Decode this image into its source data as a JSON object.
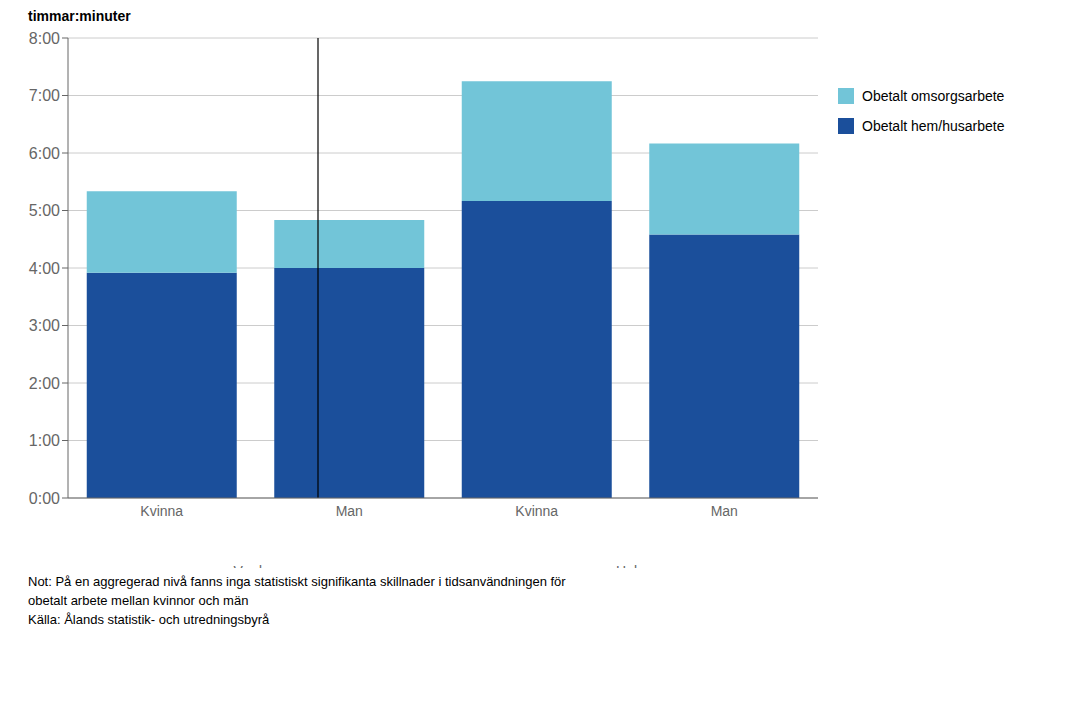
{
  "chart_data": {
    "type": "bar",
    "stacked": true,
    "ylabel": "timmar:minuter",
    "categories": [
      "Kvinna",
      "Man",
      "Kvinna",
      "Man"
    ],
    "group_labels": [
      "Vardag",
      "Helg"
    ],
    "series": [
      {
        "name": "Obetalt hem/husarbete",
        "color": "#1b4f9b",
        "values": [
          3.9167,
          4.0,
          5.1667,
          4.5833
        ]
      },
      {
        "name": "Obetalt omsorgsarbete",
        "color": "#72c5d8",
        "values": [
          1.4167,
          0.8333,
          2.0833,
          1.5833
        ]
      }
    ],
    "ylim": [
      0,
      8.0
    ],
    "yticks": [
      {
        "value": 0,
        "label": "0:00"
      },
      {
        "value": 1,
        "label": "1:00"
      },
      {
        "value": 2,
        "label": "2:00"
      },
      {
        "value": 3,
        "label": "3:00"
      },
      {
        "value": 4,
        "label": "4:00"
      },
      {
        "value": 5,
        "label": "5:00"
      },
      {
        "value": 6,
        "label": "6:00"
      },
      {
        "value": 7,
        "label": "7:00"
      },
      {
        "value": 8,
        "label": "8:00"
      }
    ],
    "grid": true,
    "legend": "right",
    "annotations": [
      "Not: På en aggregerad nivå fanns inga statistiskt signifikanta skillnader i tidsanvändningen för",
      "obetalt arbete mellan kvinnor och män",
      "Källa: Ålands statistik- och utredningsbyrå"
    ]
  }
}
